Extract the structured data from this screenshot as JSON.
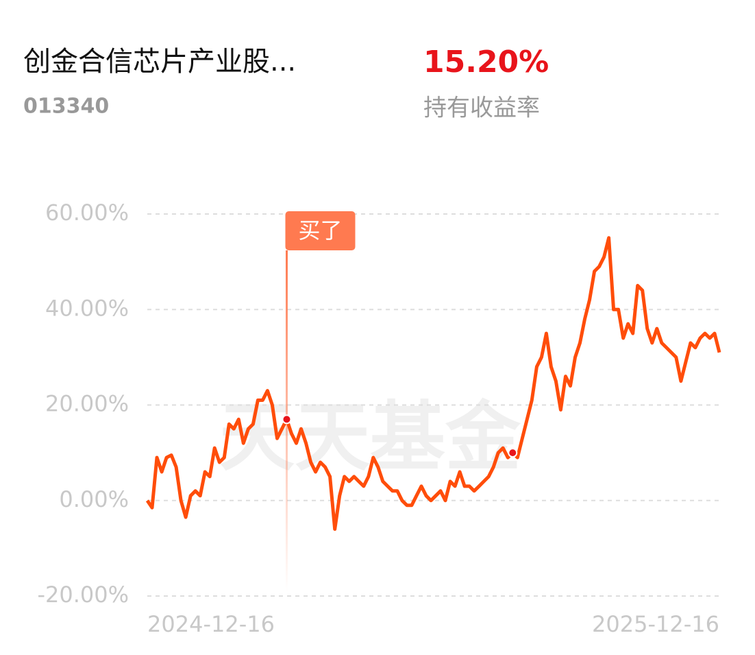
{
  "header": {
    "title": "创金合信芯片产业股...",
    "code": "013340",
    "return_value": "15.20%",
    "return_label": "持有收益率"
  },
  "chart_data": {
    "type": "line",
    "watermark": "天天基金",
    "annotation": "买了",
    "categories": [
      "2024-12-16",
      null,
      null,
      null,
      null,
      null,
      null,
      null,
      null,
      null,
      null,
      null,
      null,
      null,
      null,
      null,
      null,
      null,
      null,
      null,
      null,
      null,
      null,
      null,
      null,
      null,
      null,
      null,
      null,
      null,
      null,
      null,
      null,
      null,
      null,
      null,
      null,
      null,
      null,
      null,
      null,
      null,
      null,
      null,
      null,
      null,
      null,
      null,
      null,
      null,
      null,
      null,
      null,
      null,
      null,
      null,
      null,
      null,
      null,
      null,
      null,
      null,
      null,
      null,
      null,
      null,
      null,
      null,
      null,
      null,
      null,
      null,
      null,
      null,
      null,
      null,
      null,
      null,
      null,
      null,
      null,
      null,
      null,
      null,
      null,
      null,
      null,
      null,
      null,
      null,
      null,
      null,
      null,
      null,
      null,
      null,
      null,
      null,
      null,
      null,
      null,
      null,
      null,
      null,
      null,
      null,
      null,
      null,
      null,
      null,
      null,
      null,
      null,
      null,
      null,
      null,
      null,
      null,
      null,
      "2025-12-16"
    ],
    "values": [
      0,
      -1.5,
      9,
      6,
      9,
      9.5,
      7,
      0,
      -3.5,
      1,
      2,
      1,
      6,
      5,
      11,
      8,
      9,
      16,
      15,
      17,
      12,
      15,
      16,
      21,
      21,
      23,
      20,
      13,
      15,
      17,
      14,
      12,
      15,
      12,
      8,
      6,
      8,
      7,
      5,
      -6,
      1,
      5,
      4,
      5,
      4,
      3,
      5,
      9,
      7,
      4,
      3,
      2,
      2,
      0,
      -1,
      -1,
      1,
      3,
      1,
      0,
      1,
      2,
      0,
      4,
      3,
      6,
      3,
      3,
      2,
      3,
      4,
      5,
      7,
      10,
      11,
      9,
      10,
      9,
      13,
      17,
      21,
      28,
      30,
      35,
      28,
      25,
      19,
      26,
      24,
      30,
      33,
      38,
      42,
      48,
      49,
      51,
      55,
      40,
      40,
      34,
      37,
      35,
      45,
      44,
      36,
      33,
      36,
      33,
      32,
      31,
      30,
      25,
      29,
      33,
      32,
      34,
      35,
      34,
      35,
      31
    ],
    "color": "#ff4d0a",
    "ylim": [
      -20,
      60
    ],
    "yticks": [
      {
        "value": -20,
        "label": "-20.00%"
      },
      {
        "value": 0,
        "label": "0.00%"
      },
      {
        "value": 20,
        "label": "20.00%"
      },
      {
        "value": 40,
        "label": "40.00%"
      },
      {
        "value": 60,
        "label": "60.00%"
      }
    ],
    "grid": true
  }
}
